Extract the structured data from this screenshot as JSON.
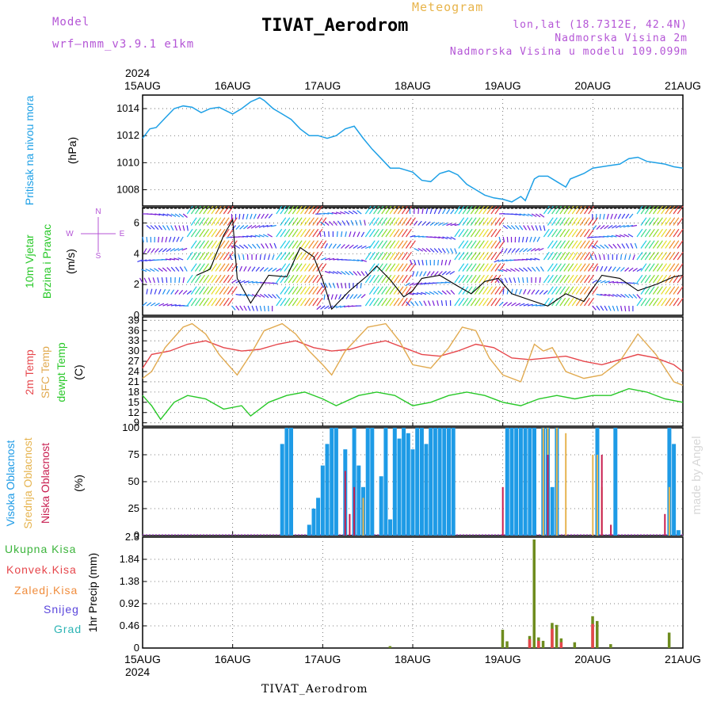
{
  "header": {
    "model_label": "Model",
    "model_name": "wrf—nmm_v3.9.1 e1km",
    "meteogram_label": "Meteogram",
    "station": "TIVAT_Aerodrom",
    "lonlat": "lon,lat (18.7312E, 42.4N)",
    "height": "Nadmorska Visina 2m",
    "model_height": "Nadmorska Visina u modelu 109.099m",
    "footer": "TIVAT_Aerodrom",
    "credit": "made by Angel"
  },
  "panel_labels": {
    "pressure": [
      "Pritisak na nivou mora",
      "(hPa)"
    ],
    "wind": [
      "10m Vjetar",
      "Brzina i Pravac",
      "(m/s)"
    ],
    "compass": [
      "N",
      "W",
      "E",
      "S"
    ],
    "temp": [
      "2m Temp",
      "SFC Temp",
      "dewpt Temp",
      "(C)"
    ],
    "cloud": [
      "Visoka Oblacnost",
      "Srednja Oblacnost",
      "Niska Oblacnost",
      "(%)"
    ],
    "precip": [
      "Ukupna Kisa",
      "Konvek.Kisa",
      "Zaledj.Kisa",
      "Snijeg",
      "Grad",
      "1hr Precip (mm)"
    ]
  },
  "colors": {
    "pressure": "#1ea0e6",
    "temp2m": "#e6464b",
    "sfc": "#e1aa50",
    "dewpt": "#28c828",
    "cloud_high": "#1e9be6",
    "cloud_mid": "#e6b450",
    "cloud_low": "#c81e50",
    "precip_total": "#3cb43c",
    "precip_conv": "#e6464b",
    "frz": "#f08c3c",
    "snow": "#5a46dc",
    "hail": "#2cb4b4",
    "purple": "#b455d6"
  },
  "chart_data": [
    {
      "type": "line",
      "panel": "pressure",
      "x_ticks": [
        "15AUG",
        "16AUG",
        "17AUG",
        "18AUG",
        "19AUG",
        "20AUG",
        "21AUG"
      ],
      "top_year": "2024",
      "bottom_year": "2024",
      "x_range_days": [
        0,
        6
      ],
      "ylim": [
        1006.8,
        1015.0
      ],
      "y_ticks": [
        1008,
        1010,
        1012,
        1014
      ],
      "series": [
        {
          "name": "Pritisak",
          "x": [
            0,
            0.08,
            0.15,
            0.25,
            0.35,
            0.45,
            0.55,
            0.65,
            0.75,
            0.85,
            1.0,
            1.1,
            1.2,
            1.3,
            1.35,
            1.45,
            1.55,
            1.65,
            1.75,
            1.85,
            1.95,
            2.05,
            2.15,
            2.25,
            2.35,
            2.45,
            2.55,
            2.65,
            2.75,
            2.85,
            3.0,
            3.1,
            3.2,
            3.3,
            3.4,
            3.5,
            3.6,
            3.7,
            3.8,
            3.9,
            4.0,
            4.1,
            4.2,
            4.25,
            4.35,
            4.4,
            4.5,
            4.6,
            4.7,
            4.75,
            4.9,
            5.0,
            5.1,
            5.2,
            5.3,
            5.4,
            5.5,
            5.6,
            5.7,
            5.8,
            5.9,
            6.0
          ],
          "values": [
            1011.8,
            1012.5,
            1012.6,
            1013.3,
            1014.0,
            1014.2,
            1014.1,
            1013.7,
            1014.0,
            1014.1,
            1013.6,
            1014.0,
            1014.5,
            1014.8,
            1014.6,
            1014.0,
            1013.6,
            1013.2,
            1012.5,
            1012.0,
            1012.0,
            1011.8,
            1012.0,
            1012.5,
            1012.7,
            1011.8,
            1011.0,
            1010.3,
            1009.6,
            1009.6,
            1009.3,
            1008.7,
            1008.6,
            1009.2,
            1009.4,
            1009.1,
            1008.4,
            1008.0,
            1007.6,
            1007.4,
            1007.3,
            1007.1,
            1007.5,
            1007.2,
            1008.8,
            1009.0,
            1009.0,
            1008.6,
            1008.2,
            1008.8,
            1009.2,
            1009.6,
            1009.7,
            1009.8,
            1009.9,
            1010.3,
            1010.4,
            1010.1,
            1010.0,
            1009.9,
            1009.7,
            1009.6
          ]
        }
      ]
    },
    {
      "type": "line",
      "panel": "wind",
      "ylim": [
        0,
        7
      ],
      "y_ticks": [
        0,
        2,
        4,
        6
      ],
      "series": [
        {
          "name": "Brzina",
          "x": [
            0.6,
            0.75,
            0.9,
            1.0,
            1.05,
            1.2,
            1.4,
            1.6,
            1.75,
            1.9,
            2.0,
            2.1,
            2.3,
            2.5,
            2.6,
            2.75,
            2.9,
            3.0,
            3.1,
            3.3,
            3.5,
            3.65,
            3.8,
            3.95,
            4.1,
            4.3,
            4.5,
            4.7,
            4.9,
            5.1,
            5.3,
            5.5,
            5.7,
            5.9,
            6.0
          ],
          "values": [
            2.6,
            3.0,
            5.2,
            6.2,
            2.4,
            0.8,
            2.6,
            2.5,
            4.4,
            3.8,
            2.3,
            0.4,
            1.6,
            2.6,
            3.2,
            2.3,
            1.2,
            1.6,
            2.4,
            2.6,
            1.9,
            1.4,
            2.2,
            2.4,
            1.4,
            1.0,
            0.6,
            1.4,
            0.9,
            2.6,
            2.4,
            1.6,
            2.0,
            2.5,
            2.6
          ]
        }
      ]
    },
    {
      "type": "line",
      "panel": "temperature",
      "ylim": [
        8,
        40
      ],
      "y_ticks": [
        9,
        12,
        15,
        18,
        21,
        24,
        27,
        30,
        33,
        36,
        39
      ],
      "series": [
        {
          "name": "2m Temp",
          "x": [
            0,
            0.1,
            0.3,
            0.5,
            0.7,
            0.9,
            1.1,
            1.3,
            1.5,
            1.7,
            1.9,
            2.1,
            2.3,
            2.5,
            2.7,
            2.9,
            3.1,
            3.3,
            3.5,
            3.7,
            3.9,
            4.1,
            4.3,
            4.5,
            4.7,
            4.9,
            5.1,
            5.3,
            5.5,
            5.7,
            5.9,
            6.0
          ],
          "values": [
            25,
            29,
            30,
            32,
            33,
            31,
            30,
            30.5,
            32,
            33,
            31,
            30,
            30.5,
            32,
            33,
            31,
            29,
            28.5,
            30,
            32,
            31,
            28,
            27.5,
            28,
            28.5,
            27,
            26,
            27.5,
            29,
            28,
            26,
            24
          ]
        },
        {
          "name": "SFC Temp",
          "x": [
            0,
            0.1,
            0.25,
            0.45,
            0.55,
            0.7,
            0.85,
            0.95,
            1.05,
            1.2,
            1.35,
            1.55,
            1.7,
            1.85,
            2.0,
            2.1,
            2.25,
            2.5,
            2.7,
            2.85,
            3.0,
            3.2,
            3.4,
            3.55,
            3.7,
            3.85,
            4.0,
            4.2,
            4.35,
            4.45,
            4.55,
            4.7,
            4.9,
            5.1,
            5.3,
            5.5,
            5.7,
            5.9,
            6.0
          ],
          "values": [
            22,
            24,
            31,
            37,
            38,
            35,
            29,
            26,
            23,
            29,
            36,
            38,
            35,
            30,
            26,
            23,
            30,
            37,
            38,
            33,
            26,
            25,
            31,
            37,
            36,
            28,
            23,
            21,
            32,
            30,
            31,
            24,
            22,
            23,
            27,
            35,
            29,
            21,
            20
          ]
        },
        {
          "name": "dewpt Temp",
          "x": [
            0,
            0.1,
            0.2,
            0.35,
            0.5,
            0.7,
            0.9,
            1.1,
            1.2,
            1.4,
            1.6,
            1.8,
            2.0,
            2.15,
            2.4,
            2.6,
            2.8,
            3.0,
            3.2,
            3.4,
            3.6,
            3.8,
            4.0,
            4.2,
            4.4,
            4.6,
            4.8,
            5.0,
            5.2,
            5.4,
            5.6,
            5.8,
            6.0
          ],
          "values": [
            17,
            14,
            10,
            15,
            17,
            16,
            13,
            14,
            11,
            15,
            17,
            18,
            16,
            14,
            17,
            18,
            17,
            14,
            15,
            17,
            18,
            17,
            15,
            14,
            16,
            17,
            16,
            17,
            17,
            19,
            18,
            16,
            15
          ]
        }
      ]
    },
    {
      "type": "bar",
      "panel": "cloud",
      "ylim": [
        0,
        100
      ],
      "y_ticks": [
        0,
        25,
        50,
        75,
        100
      ],
      "series": [
        {
          "name": "Visoka Oblacnost",
          "x": [
            1.55,
            1.6,
            1.65,
            1.85,
            1.9,
            1.95,
            2.0,
            2.05,
            2.1,
            2.15,
            2.25,
            2.35,
            2.4,
            2.45,
            2.5,
            2.55,
            2.65,
            2.7,
            2.75,
            2.8,
            2.85,
            2.9,
            2.95,
            3.0,
            3.05,
            3.1,
            3.15,
            3.2,
            3.25,
            3.3,
            3.35,
            3.4,
            3.45,
            4.05,
            4.1,
            4.15,
            4.2,
            4.25,
            4.3,
            4.35,
            4.45,
            4.5,
            4.55,
            4.6,
            5.05,
            5.25,
            5.85,
            5.9,
            5.95
          ],
          "values": [
            85,
            100,
            100,
            10,
            25,
            35,
            65,
            85,
            100,
            100,
            80,
            100,
            65,
            45,
            100,
            100,
            55,
            100,
            15,
            100,
            90,
            100,
            95,
            80,
            100,
            100,
            85,
            100,
            100,
            100,
            100,
            100,
            100,
            100,
            100,
            100,
            100,
            100,
            100,
            100,
            100,
            100,
            45,
            100,
            100,
            100,
            100,
            85,
            5
          ]
        },
        {
          "name": "Srednja Oblacnost",
          "x": [
            2.45,
            4.45,
            4.5,
            4.6,
            4.7,
            5.0,
            5.1,
            5.05,
            5.85
          ],
          "values": [
            35,
            100,
            100,
            100,
            95,
            75,
            45,
            75,
            45
          ]
        },
        {
          "name": "Niska Oblacnost",
          "x": [
            2.25,
            2.3,
            2.35,
            4.0,
            4.5,
            5.1,
            5.2,
            5.8
          ],
          "values": [
            60,
            20,
            45,
            45,
            75,
            75,
            10,
            20
          ]
        }
      ]
    },
    {
      "type": "bar",
      "panel": "precip",
      "ylim": [
        0,
        2.3
      ],
      "y_ticks": [
        0,
        0.46,
        0.92,
        1.38,
        1.84,
        2.3
      ],
      "y_tick_labels": [
        "0",
        "0.46",
        "0.92",
        "1.38",
        "1.84",
        "2.3"
      ],
      "series": [
        {
          "name": "Ukupna Kisa",
          "x": [
            2.75,
            4.0,
            4.05,
            4.3,
            4.35,
            4.4,
            4.45,
            4.55,
            4.6,
            4.65,
            4.8,
            5.0,
            5.05,
            5.2,
            5.85
          ],
          "values": [
            0.04,
            0.38,
            0.14,
            0.25,
            2.25,
            0.22,
            0.15,
            0.52,
            0.48,
            0.2,
            0.12,
            0.66,
            0.56,
            0.08,
            0.32
          ]
        },
        {
          "name": "Konvek.Kisa",
          "x": [
            4.3,
            4.4,
            4.55,
            4.65,
            5.0
          ],
          "values": [
            0.18,
            0.15,
            0.4,
            0.12,
            0.5
          ]
        }
      ]
    }
  ]
}
